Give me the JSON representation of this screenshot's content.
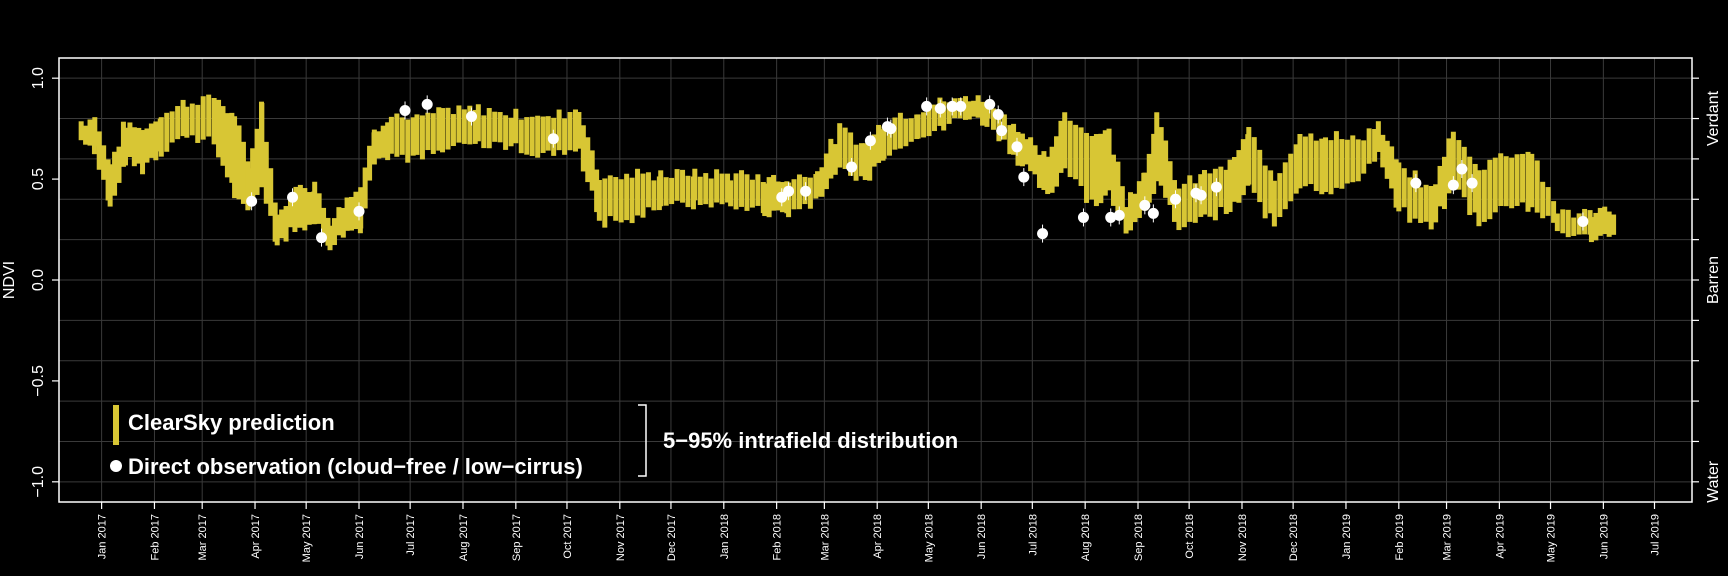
{
  "chart_data": {
    "type": "bar",
    "ylabel": "NDVI",
    "ylim": [
      -1.1,
      1.1
    ],
    "xlim": [
      "2016-12-07",
      "2019-07-23"
    ],
    "y_ticks": [
      "1.0",
      "0.5",
      "0.0",
      "−0.5",
      "−1.0"
    ],
    "y_tick_values": [
      1.0,
      0.5,
      0.0,
      -0.5,
      -1.0
    ],
    "right_labels": [
      {
        "text": "Verdant",
        "value": 0.8
      },
      {
        "text": "Barren",
        "value": 0.0
      },
      {
        "text": "Water",
        "value": -1.0
      }
    ],
    "x_ticks": [
      {
        "label": "Jan 2017",
        "date": "2017-01-01"
      },
      {
        "label": "Feb 2017",
        "date": "2017-02-01"
      },
      {
        "label": "Mar 2017",
        "date": "2017-03-01"
      },
      {
        "label": "Apr 2017",
        "date": "2017-04-01"
      },
      {
        "label": "May 2017",
        "date": "2017-05-01"
      },
      {
        "label": "Jun 2017",
        "date": "2017-06-01"
      },
      {
        "label": "Jul 2017",
        "date": "2017-07-01"
      },
      {
        "label": "Aug 2017",
        "date": "2017-08-01"
      },
      {
        "label": "Sep 2017",
        "date": "2017-09-01"
      },
      {
        "label": "Oct 2017",
        "date": "2017-10-01"
      },
      {
        "label": "Nov 2017",
        "date": "2017-11-01"
      },
      {
        "label": "Dec 2017",
        "date": "2017-12-01"
      },
      {
        "label": "Jan 2018",
        "date": "2018-01-01"
      },
      {
        "label": "Feb 2018",
        "date": "2018-02-01"
      },
      {
        "label": "Mar 2018",
        "date": "2018-03-01"
      },
      {
        "label": "Apr 2018",
        "date": "2018-04-01"
      },
      {
        "label": "May 2018",
        "date": "2018-05-01"
      },
      {
        "label": "Jun 2018",
        "date": "2018-06-01"
      },
      {
        "label": "Jul 2018",
        "date": "2018-07-01"
      },
      {
        "label": "Aug 2018",
        "date": "2018-08-01"
      },
      {
        "label": "Sep 2018",
        "date": "2018-09-01"
      },
      {
        "label": "Oct 2018",
        "date": "2018-10-01"
      },
      {
        "label": "Nov 2018",
        "date": "2018-11-01"
      },
      {
        "label": "Dec 2018",
        "date": "2018-12-01"
      },
      {
        "label": "Jan 2019",
        "date": "2019-01-01"
      },
      {
        "label": "Feb 2019",
        "date": "2019-02-01"
      },
      {
        "label": "Mar 2019",
        "date": "2019-03-01"
      },
      {
        "label": "Apr 2019",
        "date": "2019-04-01"
      },
      {
        "label": "May 2019",
        "date": "2019-05-01"
      },
      {
        "label": "Jun 2019",
        "date": "2019-06-01"
      },
      {
        "label": "Jul 2019",
        "date": "2019-07-01"
      }
    ],
    "grid": true,
    "legend": {
      "placement": "bottom-left",
      "prediction_label": "ClearSky prediction",
      "observation_label": "Direct observation (cloud−free / low−cirrus)",
      "bracket_label": "5−95% intrafield distribution"
    },
    "colors": {
      "background": "#000000",
      "prediction": "#d8c634",
      "observation": "#ffffff",
      "grid": "#3a3a3a",
      "axes": "#ffffff"
    },
    "prediction_series": {
      "name": "ClearSky prediction",
      "anchors": [
        [
          "2016-12-20",
          0.74,
          0.03
        ],
        [
          "2016-12-28",
          0.73,
          0.06
        ],
        [
          "2017-01-06",
          0.46,
          0.1
        ],
        [
          "2017-01-15",
          0.68,
          0.08
        ],
        [
          "2017-01-25",
          0.65,
          0.08
        ],
        [
          "2017-02-05",
          0.73,
          0.07
        ],
        [
          "2017-02-20",
          0.8,
          0.07
        ],
        [
          "2017-03-08",
          0.79,
          0.1
        ],
        [
          "2017-03-20",
          0.62,
          0.18
        ],
        [
          "2017-03-28",
          0.45,
          0.1
        ],
        [
          "2017-04-05",
          0.68,
          0.18
        ],
        [
          "2017-04-14",
          0.25,
          0.05
        ],
        [
          "2017-04-25",
          0.35,
          0.08
        ],
        [
          "2017-05-06",
          0.38,
          0.08
        ],
        [
          "2017-05-15",
          0.23,
          0.05
        ],
        [
          "2017-05-25",
          0.32,
          0.08
        ],
        [
          "2017-06-02",
          0.36,
          0.08
        ],
        [
          "2017-06-10",
          0.68,
          0.06
        ],
        [
          "2017-06-20",
          0.72,
          0.08
        ],
        [
          "2017-07-05",
          0.7,
          0.08
        ],
        [
          "2017-07-20",
          0.74,
          0.08
        ],
        [
          "2017-08-10",
          0.76,
          0.07
        ],
        [
          "2017-09-01",
          0.74,
          0.07
        ],
        [
          "2017-09-20",
          0.71,
          0.08
        ],
        [
          "2017-10-08",
          0.75,
          0.09
        ],
        [
          "2017-10-20",
          0.4,
          0.1
        ],
        [
          "2017-11-05",
          0.4,
          0.1
        ],
        [
          "2017-11-25",
          0.45,
          0.06
        ],
        [
          "2017-12-15",
          0.45,
          0.06
        ],
        [
          "2018-01-05",
          0.45,
          0.06
        ],
        [
          "2018-01-25",
          0.42,
          0.07
        ],
        [
          "2018-02-08",
          0.41,
          0.07
        ],
        [
          "2018-02-25",
          0.47,
          0.06
        ],
        [
          "2018-03-10",
          0.65,
          0.08
        ],
        [
          "2018-03-25",
          0.58,
          0.08
        ],
        [
          "2018-04-05",
          0.7,
          0.07
        ],
        [
          "2018-04-25",
          0.78,
          0.05
        ],
        [
          "2018-05-10",
          0.82,
          0.05
        ],
        [
          "2018-05-25",
          0.86,
          0.03
        ],
        [
          "2018-06-05",
          0.83,
          0.04
        ],
        [
          "2018-06-20",
          0.7,
          0.06
        ],
        [
          "2018-06-30",
          0.6,
          0.06
        ],
        [
          "2018-07-10",
          0.5,
          0.08
        ],
        [
          "2018-07-20",
          0.7,
          0.12
        ],
        [
          "2018-08-05",
          0.55,
          0.15
        ],
        [
          "2018-08-15",
          0.58,
          0.15
        ],
        [
          "2018-08-25",
          0.32,
          0.06
        ],
        [
          "2018-09-05",
          0.45,
          0.08
        ],
        [
          "2018-09-12",
          0.65,
          0.15
        ],
        [
          "2018-09-25",
          0.35,
          0.08
        ],
        [
          "2018-10-10",
          0.42,
          0.1
        ],
        [
          "2018-10-25",
          0.45,
          0.1
        ],
        [
          "2018-11-05",
          0.6,
          0.12
        ],
        [
          "2018-11-20",
          0.38,
          0.1
        ],
        [
          "2018-12-05",
          0.6,
          0.12
        ],
        [
          "2018-12-20",
          0.58,
          0.12
        ],
        [
          "2019-01-05",
          0.58,
          0.1
        ],
        [
          "2019-01-20",
          0.7,
          0.05
        ],
        [
          "2019-02-01",
          0.45,
          0.1
        ],
        [
          "2019-02-20",
          0.35,
          0.08
        ],
        [
          "2019-03-05",
          0.6,
          0.12
        ],
        [
          "2019-03-20",
          0.42,
          0.12
        ],
        [
          "2019-04-05",
          0.5,
          0.12
        ],
        [
          "2019-04-20",
          0.5,
          0.12
        ],
        [
          "2019-05-05",
          0.29,
          0.04
        ],
        [
          "2019-05-25",
          0.27,
          0.04
        ],
        [
          "2019-06-08",
          0.3,
          0.04
        ]
      ]
    },
    "observation_series": {
      "name": "Direct observation (cloud−free / low−cirrus)",
      "points": [
        [
          "2017-03-30",
          0.39
        ],
        [
          "2017-04-23",
          0.41
        ],
        [
          "2017-05-10",
          0.21
        ],
        [
          "2017-06-01",
          0.34
        ],
        [
          "2017-06-28",
          0.84
        ],
        [
          "2017-07-11",
          0.87
        ],
        [
          "2017-08-06",
          0.81
        ],
        [
          "2017-09-23",
          0.7
        ],
        [
          "2018-02-04",
          0.41
        ],
        [
          "2018-02-08",
          0.44
        ],
        [
          "2018-02-18",
          0.44
        ],
        [
          "2018-03-17",
          0.56
        ],
        [
          "2018-03-28",
          0.69
        ],
        [
          "2018-04-07",
          0.76
        ],
        [
          "2018-04-09",
          0.75
        ],
        [
          "2018-04-30",
          0.86
        ],
        [
          "2018-05-08",
          0.85
        ],
        [
          "2018-05-15",
          0.86
        ],
        [
          "2018-05-20",
          0.86
        ],
        [
          "2018-06-06",
          0.87
        ],
        [
          "2018-06-11",
          0.82
        ],
        [
          "2018-06-13",
          0.74
        ],
        [
          "2018-06-22",
          0.66
        ],
        [
          "2018-06-26",
          0.51
        ],
        [
          "2018-07-07",
          0.23
        ],
        [
          "2018-07-31",
          0.31
        ],
        [
          "2018-08-16",
          0.31
        ],
        [
          "2018-08-21",
          0.32
        ],
        [
          "2018-09-05",
          0.37
        ],
        [
          "2018-09-10",
          0.33
        ],
        [
          "2018-09-23",
          0.4
        ],
        [
          "2018-10-05",
          0.43
        ],
        [
          "2018-10-08",
          0.42
        ],
        [
          "2018-10-17",
          0.46
        ],
        [
          "2019-02-11",
          0.48
        ],
        [
          "2019-03-05",
          0.47
        ],
        [
          "2019-03-10",
          0.55
        ],
        [
          "2019-03-16",
          0.48
        ],
        [
          "2019-05-20",
          0.29
        ]
      ]
    }
  }
}
